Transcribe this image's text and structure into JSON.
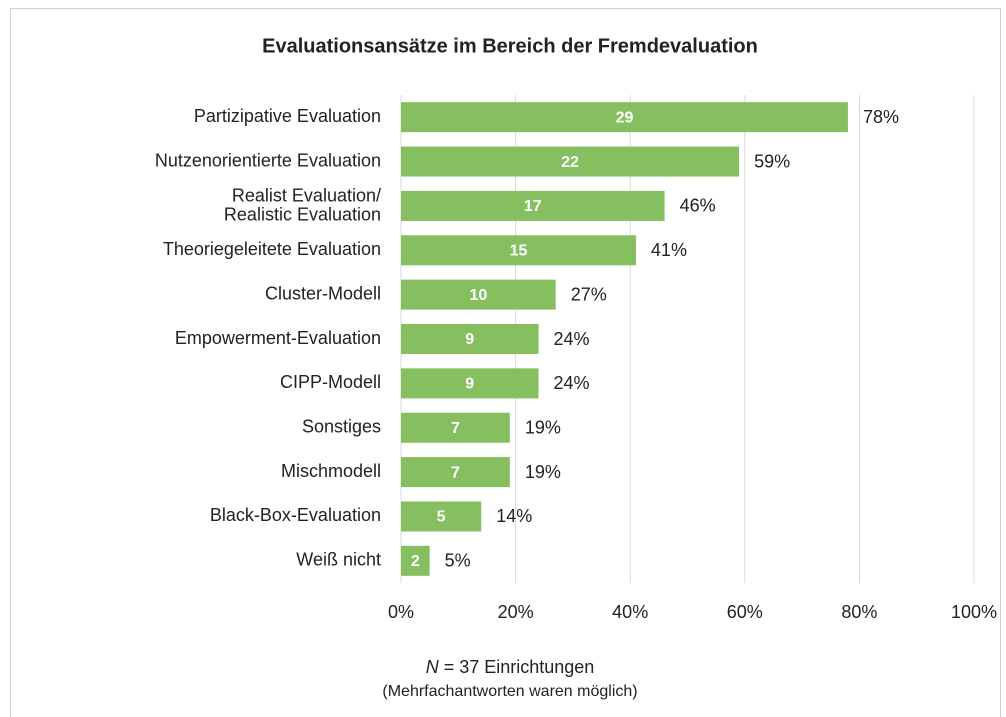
{
  "chart_data": {
    "type": "bar",
    "orientation": "horizontal",
    "title": "Evaluationsansätze im Bereich der Fremdevaluation",
    "categories": [
      "Partizipative Evaluation",
      "Nutzenorientierte Evaluation",
      "Realist Evaluation/\nRealistic Evaluation",
      "Theoriegeleitete Evaluation",
      "Cluster-Modell",
      "Empowerment-Evaluation",
      "CIPP-Modell",
      "Sonstiges",
      "Mischmodell",
      "Black-Box-Evaluation",
      "Weiß nicht"
    ],
    "values": [
      78,
      59,
      46,
      41,
      27,
      24,
      24,
      19,
      19,
      14,
      5
    ],
    "value_labels": [
      "78%",
      "59%",
      "46%",
      "41%",
      "27%",
      "24%",
      "24%",
      "19%",
      "19%",
      "14%",
      "5%"
    ],
    "counts": [
      29,
      22,
      17,
      15,
      10,
      9,
      9,
      7,
      7,
      5,
      2
    ],
    "color": "#86bf60",
    "xlim": [
      0,
      100
    ],
    "xticks": [
      {
        "value": 0,
        "label": "0%"
      },
      {
        "value": 20,
        "label": "20%"
      },
      {
        "value": 40,
        "label": "40%"
      },
      {
        "value": 60,
        "label": "60%"
      },
      {
        "value": 80,
        "label": "80%"
      },
      {
        "value": 100,
        "label": "100%"
      }
    ],
    "grid": true,
    "note_symbol": "N",
    "note": "= 37 Einrichtungen",
    "subnote": "(Mehrfachantworten waren möglich)"
  }
}
